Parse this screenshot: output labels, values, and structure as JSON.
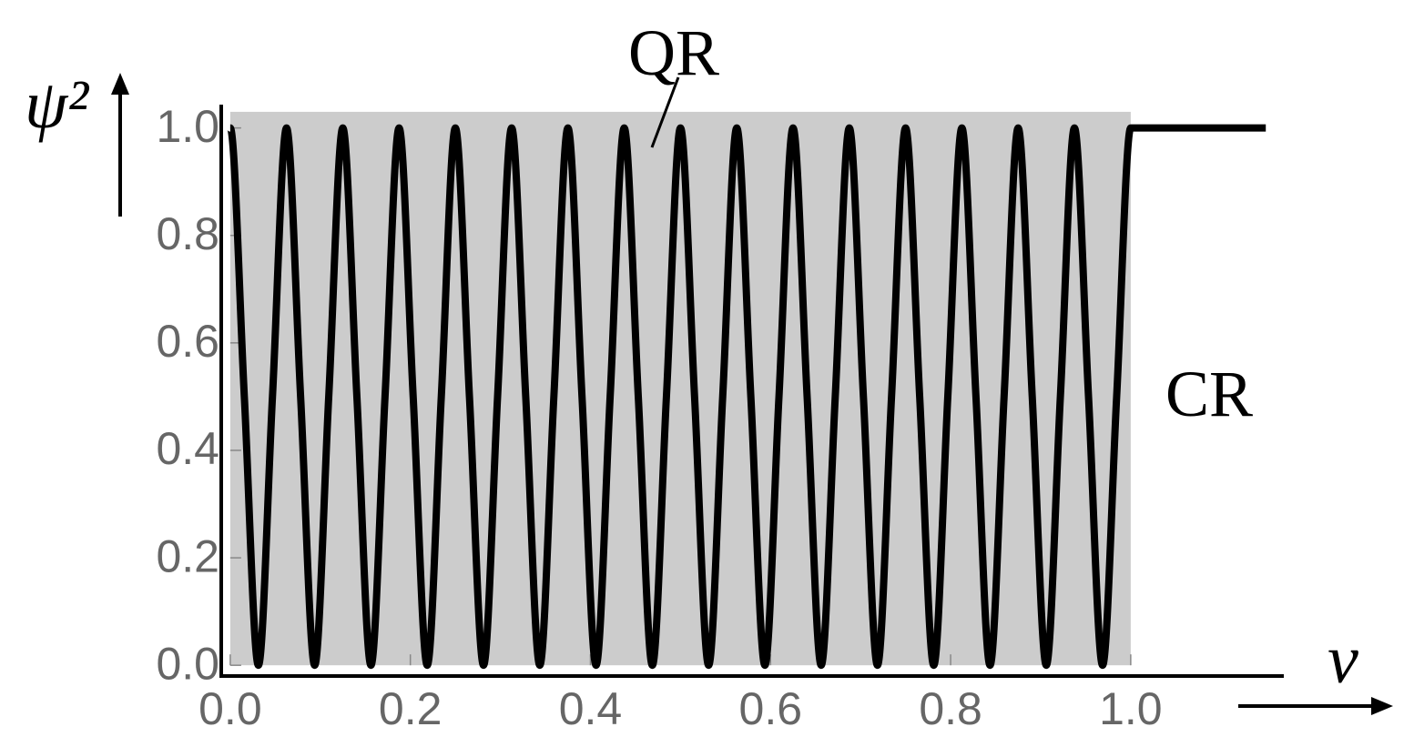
{
  "chart_data": {
    "type": "line",
    "title_annotations": [
      "QR",
      "CR"
    ],
    "x_label": "v",
    "y_label": "ψ²",
    "x": [
      0,
      0.015625,
      0.03125,
      0.046875,
      0.0625,
      0.078125,
      0.09375,
      0.109375,
      0.125,
      0.140625,
      0.15625,
      0.171875,
      0.1875,
      0.203125,
      0.21875,
      0.234375,
      0.25,
      0.265625,
      0.28125,
      0.296875,
      0.3125,
      0.328125,
      0.34375,
      0.359375,
      0.375,
      0.390625,
      0.40625,
      0.421875,
      0.4375,
      0.453125,
      0.46875,
      0.484375,
      0.5,
      0.515625,
      0.53125,
      0.546875,
      0.5625,
      0.578125,
      0.59375,
      0.609375,
      0.625,
      0.640625,
      0.65625,
      0.671875,
      0.6875,
      0.703125,
      0.71875,
      0.734375,
      0.75,
      0.765625,
      0.78125,
      0.796875,
      0.8125,
      0.828125,
      0.84375,
      0.859375,
      0.875,
      0.890625,
      0.90625,
      0.921875,
      0.9375,
      0.953125,
      0.96875,
      0.984375,
      1.0,
      1.15
    ],
    "values": [
      1,
      0.5,
      0,
      0.5,
      1,
      0.5,
      0,
      0.5,
      1,
      0.5,
      0,
      0.5,
      1,
      0.5,
      0,
      0.5,
      1,
      0.5,
      0,
      0.5,
      1,
      0.5,
      0,
      0.5,
      1,
      0.5,
      0,
      0.5,
      1,
      0.5,
      0,
      0.5,
      1,
      0.5,
      0,
      0.5,
      1,
      0.5,
      0,
      0.5,
      1,
      0.5,
      0,
      0.5,
      1,
      0.5,
      0,
      0.5,
      1,
      0.5,
      0,
      0.5,
      1,
      0.5,
      0,
      0.5,
      1,
      0.5,
      0,
      0.5,
      1,
      0.5,
      0,
      0.5,
      1,
      1
    ],
    "color": "#000000",
    "region": {
      "x": [
        0,
        1
      ],
      "y": [
        0,
        1.03
      ],
      "color": "#cccccc"
    },
    "xlim": [
      -0.01,
      1.17
    ],
    "ylim": [
      -0.02,
      1.04
    ],
    "xticks": [
      {
        "value": 0,
        "label": "0.0"
      },
      {
        "value": 0.2,
        "label": "0.2"
      },
      {
        "value": 0.4,
        "label": "0.4"
      },
      {
        "value": 0.6,
        "label": "0.6"
      },
      {
        "value": 0.8,
        "label": "0.8"
      },
      {
        "value": 1,
        "label": "1.0"
      }
    ],
    "yticks": [
      {
        "value": 0,
        "label": "0.0"
      },
      {
        "value": 0.2,
        "label": "0.2"
      },
      {
        "value": 0.4,
        "label": "0.4"
      },
      {
        "value": 0.6,
        "label": "0.6"
      },
      {
        "value": 0.8,
        "label": "0.8"
      },
      {
        "value": 1,
        "label": "1.0"
      }
    ],
    "grid": false
  }
}
